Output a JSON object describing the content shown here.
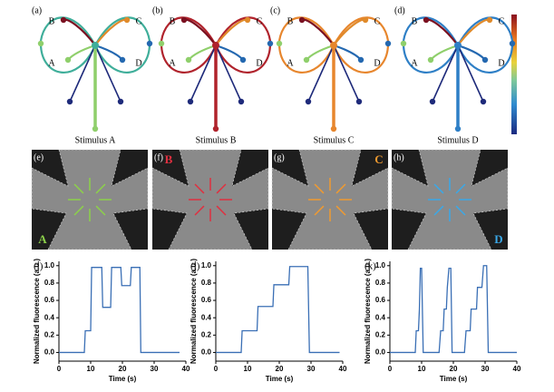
{
  "diagrams": [
    {
      "label": "(a)",
      "stimulus": "Stimulus A"
    },
    {
      "label": "(b)",
      "stimulus": "Stimulus B"
    },
    {
      "label": "(c)",
      "stimulus": "Stimulus C"
    },
    {
      "label": "(d)",
      "stimulus": "Stimulus D"
    }
  ],
  "node_labels": [
    "A",
    "B",
    "C",
    "D"
  ],
  "images": [
    {
      "label": "(e)",
      "letter": "A"
    },
    {
      "label": "(f)",
      "letter": "B"
    },
    {
      "label": "(g)",
      "letter": "C"
    },
    {
      "label": "(h)",
      "letter": "D"
    }
  ],
  "chart_data": [
    {
      "type": "line",
      "title": "(i)",
      "x_label": "Time (s)",
      "y_label": "Normalized fluorescence (a.u.)",
      "xlim": [
        0,
        40
      ],
      "xticks": [
        0,
        10,
        20,
        30,
        40
      ],
      "ylim": [
        -0.1,
        1.05
      ],
      "yticks": [
        {
          "value": 0,
          "label": "0.0"
        },
        {
          "value": 0.2,
          "label": "0.2"
        },
        {
          "value": 0.4,
          "label": "0.4"
        },
        {
          "value": 0.6,
          "label": "0.6"
        },
        {
          "value": 0.8,
          "label": "0.8"
        },
        {
          "value": 1,
          "label": "1.0"
        }
      ],
      "series": [
        {
          "color": "#3a6fb5",
          "x": [
            0,
            8,
            8.3,
            10,
            10.3,
            13.5,
            13.8,
            16.3,
            16.6,
            19.5,
            19.8,
            22.5,
            22.8,
            25.5,
            25.8,
            38
          ],
          "values": [
            0,
            0,
            0.25,
            0.25,
            0.98,
            0.98,
            0.52,
            0.52,
            0.98,
            0.98,
            0.77,
            0.77,
            0.98,
            0.98,
            0,
            0
          ]
        }
      ]
    },
    {
      "type": "line",
      "title": "(j)",
      "x_label": "Time (s)",
      "y_label": "Normalized fluorescence (a.u.)",
      "xlim": [
        0,
        40
      ],
      "xticks": [
        0,
        10,
        20,
        30,
        40
      ],
      "ylim": [
        -0.1,
        1.05
      ],
      "yticks": [
        {
          "value": 0,
          "label": "0.0"
        },
        {
          "value": 0.2,
          "label": "0.2"
        },
        {
          "value": 0.4,
          "label": "0.4"
        },
        {
          "value": 0.6,
          "label": "0.6"
        },
        {
          "value": 0.8,
          "label": "0.8"
        },
        {
          "value": 1,
          "label": "1.0"
        }
      ],
      "series": [
        {
          "color": "#3a6fb5",
          "x": [
            0,
            8,
            8.3,
            13,
            13.3,
            18,
            18.3,
            23,
            23.3,
            29,
            29.5,
            39
          ],
          "values": [
            0,
            0,
            0.25,
            0.25,
            0.53,
            0.53,
            0.78,
            0.78,
            0.99,
            0.99,
            0,
            0
          ]
        }
      ]
    },
    {
      "type": "line",
      "title": "(k)",
      "x_label": "Time (s)",
      "y_label": "Normalized fluorescence (a.u.)",
      "xlim": [
        0,
        40
      ],
      "xticks": [
        0,
        10,
        20,
        30,
        40
      ],
      "ylim": [
        -0.1,
        1.05
      ],
      "yticks": [
        {
          "value": 0,
          "label": "0.0"
        },
        {
          "value": 0.2,
          "label": "0.2"
        },
        {
          "value": 0.4,
          "label": "0.4"
        },
        {
          "value": 0.6,
          "label": "0.6"
        },
        {
          "value": 0.8,
          "label": "0.8"
        },
        {
          "value": 1,
          "label": "1.0"
        }
      ],
      "series": [
        {
          "color": "#3a6fb5",
          "x": [
            0,
            8,
            8.3,
            9,
            9.3,
            9.6,
            10,
            10.5,
            15.5,
            16,
            16.8,
            17.1,
            17.8,
            18.1,
            18.6,
            19.2,
            19.6,
            23.5,
            24,
            25.3,
            25.6,
            27.3,
            27.6,
            29,
            29.5,
            30.5,
            31,
            40
          ],
          "values": [
            0,
            0,
            0.25,
            0.25,
            0.5,
            0.97,
            0.97,
            0,
            0,
            0.25,
            0.25,
            0.5,
            0.5,
            0.75,
            0.97,
            0.97,
            0,
            0,
            0.25,
            0.25,
            0.5,
            0.5,
            0.75,
            0.75,
            1,
            1,
            0,
            0
          ]
        }
      ]
    }
  ]
}
